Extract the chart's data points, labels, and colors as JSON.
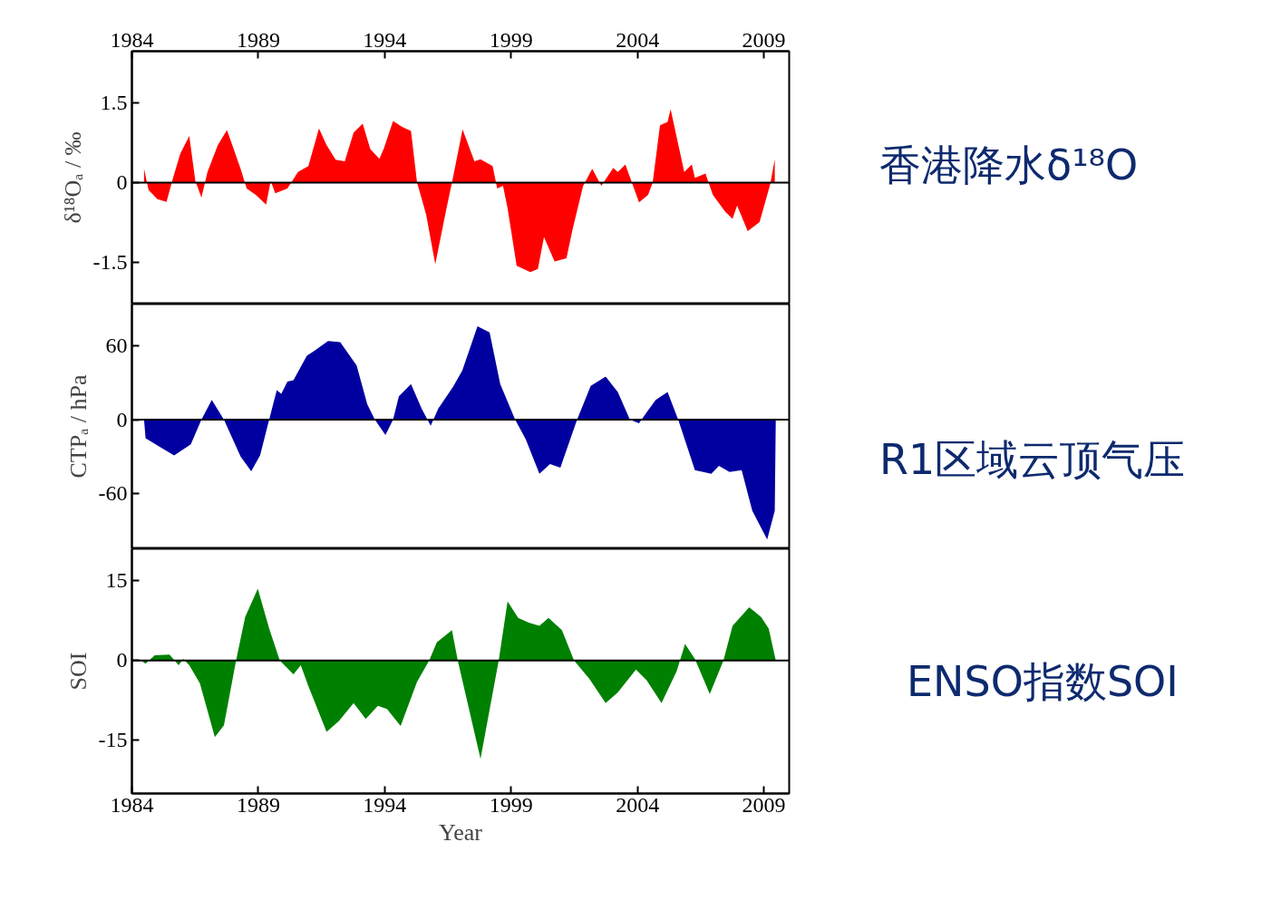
{
  "chart_data": [
    {
      "type": "area",
      "ylabel": "δ¹⁸Oₐ / ‰",
      "xlim": [
        1984,
        2010
      ],
      "x2lim": [
        1984,
        2010
      ],
      "x2ticks": [
        1984,
        1989,
        1994,
        1999,
        2004,
        2009
      ],
      "ylim": [
        -2.28,
        2.47
      ],
      "yticks": [
        1.5,
        0,
        -1.5
      ],
      "tick_labels": "y",
      "grid": false,
      "ref_lines": [
        {
          "axis": "y",
          "value": 0,
          "color": "#000000"
        }
      ],
      "series": [
        {
          "name": "香港降水δ¹⁸O",
          "color": "#ff0000",
          "x": [
            1984.48,
            1984.66,
            1985.01,
            1985.37,
            1985.61,
            1985.91,
            1986.27,
            1986.51,
            1986.75,
            1986.99,
            1987.4,
            1987.76,
            1988.3,
            1988.54,
            1988.9,
            1989.31,
            1989.49,
            1989.67,
            1990.15,
            1990.57,
            1990.98,
            1991.4,
            1991.7,
            1992.06,
            1992.42,
            1992.77,
            1993.13,
            1993.43,
            1993.79,
            1993.97,
            1994.33,
            1994.69,
            1995.04,
            1995.28,
            1995.64,
            1996.0,
            1996.42,
            1996.66,
            1997.08,
            1997.55,
            1997.79,
            1998.27,
            1998.45,
            1998.68,
            1998.86,
            1999.22,
            1999.76,
            2000.06,
            2000.3,
            2000.72,
            2001.19,
            2001.43,
            2001.85,
            2002.21,
            2002.57,
            2003.04,
            2003.22,
            2003.52,
            2004.06,
            2004.42,
            2004.6,
            2004.89,
            2005.19,
            2005.31,
            2005.85,
            2006.15,
            2006.27,
            2006.69,
            2006.98,
            2007.46,
            2007.76,
            2007.94,
            2008.36,
            2008.83,
            2009.25,
            2009.43
          ],
          "values": [
            0.26,
            -0.14,
            -0.31,
            -0.36,
            0.06,
            0.54,
            0.88,
            0.03,
            -0.28,
            0.2,
            0.71,
            0.99,
            0.26,
            -0.11,
            -0.23,
            -0.41,
            0.03,
            -0.2,
            -0.11,
            0.2,
            0.31,
            1.02,
            0.71,
            0.43,
            0.4,
            0.94,
            1.11,
            0.63,
            0.45,
            0.65,
            1.16,
            1.05,
            0.97,
            0,
            -0.6,
            -1.53,
            -0.54,
            0,
            1.0,
            0.4,
            0.44,
            0.31,
            -0.11,
            -0.06,
            -0.48,
            -1.56,
            -1.68,
            -1.62,
            -1.02,
            -1.48,
            -1.42,
            -0.88,
            -0.06,
            0.26,
            -0.06,
            0.28,
            0.2,
            0.34,
            -0.37,
            -0.23,
            0,
            1.08,
            1.14,
            1.38,
            0.2,
            0.34,
            0.09,
            0.17,
            -0.23,
            -0.54,
            -0.68,
            -0.43,
            -0.91,
            -0.74,
            -0.03,
            0.44
          ]
        }
      ]
    },
    {
      "type": "area",
      "ylabel": "CTPₐ / hPa",
      "xlim": [
        1984,
        2010
      ],
      "ylim": [
        -105,
        94
      ],
      "yticks": [
        60,
        0,
        -60
      ],
      "tick_labels": "y",
      "grid": false,
      "ref_lines": [
        {
          "axis": "y",
          "value": 0,
          "color": "#000000"
        }
      ],
      "series": [
        {
          "name": "R1区域云顶气压",
          "color": "#0000a0",
          "x": [
            1984.48,
            1984.54,
            1985.01,
            1985.67,
            1986.33,
            1986.75,
            1987.16,
            1987.64,
            1988.3,
            1988.72,
            1989.07,
            1989.43,
            1989.73,
            1989.91,
            1990.15,
            1990.39,
            1990.92,
            1991.22,
            1991.76,
            1992.24,
            1992.89,
            1993.31,
            1993.61,
            1994.03,
            1994.33,
            1994.56,
            1995.04,
            1995.46,
            1995.82,
            1996.12,
            1996.71,
            1997.07,
            1997.67,
            1998.15,
            1998.57,
            1999.16,
            1999.58,
            2000.12,
            2000.54,
            2000.95,
            2001.61,
            2002.15,
            2002.74,
            2003.22,
            2003.7,
            2004.06,
            2004.36,
            2004.72,
            2005.19,
            2005.61,
            2006.27,
            2006.92,
            2007.22,
            2007.64,
            2008.12,
            2008.54,
            2009.13,
            2009.43,
            2009.47
          ],
          "values": [
            0,
            -15,
            -21,
            -29,
            -20,
            0,
            16,
            0,
            -30,
            -42,
            -29,
            0,
            24,
            21,
            31,
            32,
            52,
            56,
            64,
            63,
            44,
            12.5,
            0,
            -12.5,
            0,
            19,
            29,
            9,
            -5,
            9,
            27,
            40,
            76,
            71,
            29,
            0,
            -16,
            -44,
            -36,
            -39,
            0,
            27.5,
            35,
            22.5,
            0,
            -3,
            6,
            16,
            22.5,
            0,
            -41,
            -44,
            -37.5,
            -42.5,
            -41,
            -74,
            -97.5,
            -74,
            0
          ]
        }
      ]
    },
    {
      "type": "area",
      "ylabel": "SOI",
      "xlabel": "Year",
      "xlim": [
        1984,
        2010
      ],
      "xticks": [
        1984,
        1989,
        1994,
        1999,
        2004,
        2009
      ],
      "ylim": [
        -25,
        21
      ],
      "yticks": [
        15,
        0,
        -15
      ],
      "grid": false,
      "ref_lines": [
        {
          "axis": "y",
          "value": 0,
          "color": "#000000"
        }
      ],
      "series": [
        {
          "name": "ENSO指数SOI",
          "color": "#008000",
          "x": [
            1984.36,
            1984.54,
            1984.9,
            1985.49,
            1985.85,
            1986.03,
            1986.27,
            1986.69,
            1987.28,
            1987.64,
            1988.12,
            1988.48,
            1988.98,
            1989.43,
            1989.85,
            1990.39,
            1990.68,
            1990.98,
            1991.7,
            1992.18,
            1992.77,
            1993.25,
            1993.73,
            1994.09,
            1994.63,
            1995.28,
            1995.76,
            1996.06,
            1996.66,
            1996.89,
            1997.79,
            1998.51,
            1998.86,
            1999.28,
            1999.7,
            2000.12,
            2000.48,
            2001.01,
            2001.49,
            2002.09,
            2002.74,
            2003.22,
            2003.94,
            2004.36,
            2004.95,
            2005.55,
            2005.88,
            2006.27,
            2006.86,
            2007.4,
            2007.76,
            2008.42,
            2008.89,
            2009.19,
            2009.47
          ],
          "values": [
            0,
            -0.6,
            1,
            1.1,
            -0.9,
            0.3,
            -0.9,
            -4.3,
            -14.4,
            -12.2,
            0,
            8.2,
            13.5,
            6,
            0,
            -2.6,
            -0.9,
            -4.8,
            -13.4,
            -11.4,
            -8,
            -11,
            -8.5,
            -9.1,
            -12.3,
            -4,
            0,
            3.4,
            5.7,
            0,
            -18.5,
            0,
            11.1,
            8,
            7.1,
            6.5,
            8,
            5.7,
            0,
            -3.4,
            -8,
            -6,
            -1.7,
            -3.7,
            -8,
            -2,
            3.1,
            0.3,
            -6.3,
            0,
            6.5,
            10,
            8.2,
            6,
            0
          ]
        }
      ]
    }
  ]
}
